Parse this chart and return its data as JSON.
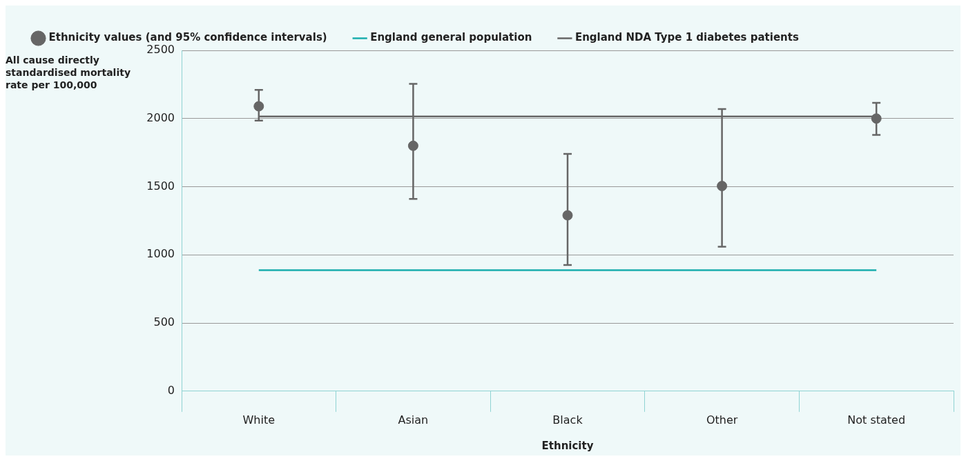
{
  "chart_data": {
    "type": "scatter",
    "xlabel": "Ethnicity",
    "ylabel": "All cause directly standardised mortality rate per 100,000",
    "categories": [
      "White",
      "Asian",
      "Black",
      "Other",
      "Not stated"
    ],
    "series": [
      {
        "name": "Ethnicity values (and 95% confidence intervals)",
        "marker": "circle",
        "color": "#666666",
        "values": [
          2090,
          1800,
          1290,
          1505,
          2000
        ],
        "errors": [
          [
            1985,
            2210
          ],
          [
            1410,
            2255
          ],
          [
            925,
            1740
          ],
          [
            1060,
            2070
          ],
          [
            1880,
            2115
          ]
        ]
      },
      {
        "name": "England general population",
        "type": "line",
        "color": "#1aadad",
        "values": [
          887,
          887,
          887,
          887,
          887
        ]
      },
      {
        "name": "England NDA Type 1 diabetes patients",
        "type": "line",
        "color": "#666666",
        "values": [
          2015,
          2015,
          2015,
          2015,
          2015
        ]
      }
    ],
    "ylim": [
      0,
      2500
    ],
    "yticks": [
      0,
      500,
      1000,
      1500,
      2000,
      2500
    ],
    "grid": "y",
    "legend": "top left",
    "line_style": "solid"
  }
}
